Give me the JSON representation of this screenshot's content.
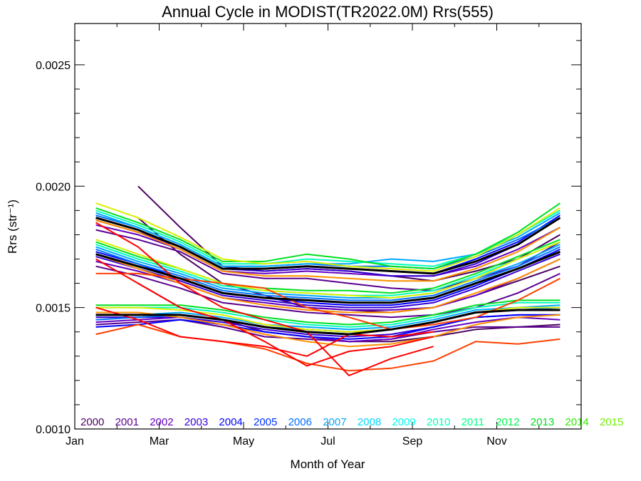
{
  "chart_data": {
    "type": "line",
    "title": "Annual Cycle in MODIST(TR2022.0M) Rrs(555)",
    "xlabel": "Month of Year",
    "ylabel": "Rrs (str⁻¹)",
    "x_ticks": [
      "Jan",
      "Mar",
      "May",
      "Jul",
      "Sep",
      "Nov"
    ],
    "x_tick_positions": [
      1,
      3,
      5,
      7,
      9,
      11
    ],
    "xlim": [
      1,
      13
    ],
    "y_ticks": [
      "0.0010",
      "0.0015",
      "0.0020",
      "0.0025"
    ],
    "y_tick_values": [
      0.001,
      0.0015,
      0.002,
      0.0025
    ],
    "ylim": [
      0.001,
      0.00267
    ],
    "months": [
      1.5,
      2.5,
      3.5,
      4.5,
      5.5,
      6.5,
      7.5,
      8.5,
      9.5,
      10.5,
      11.5,
      12.5
    ],
    "legend_years": [
      "2000",
      "2001",
      "2002",
      "2003",
      "2004",
      "2005",
      "2006",
      "2007",
      "2008",
      "2009",
      "2010",
      "2011",
      "2012",
      "2013",
      "2014",
      "2015"
    ],
    "colors": {
      "2000": "#4b0060",
      "2001": "#5a0090",
      "2002": "#6400c0",
      "2003": "#3200d8",
      "2004": "#0000ff",
      "2005": "#0030ff",
      "2006": "#0070ff",
      "2007": "#00a8ff",
      "2008": "#00d8ff",
      "2009": "#00ffee",
      "2010": "#00ffbb",
      "2011": "#00ff88",
      "2012": "#00f050",
      "2013": "#00e020",
      "2014": "#30e800",
      "2015": "#70f000",
      "late_yellow": "#d8f000",
      "late_orange": "#ff9000",
      "late_redorange": "#ff4000",
      "late_red": "#ff0000",
      "climatology": "#000000"
    },
    "climatology": [
      {
        "name": "upper",
        "values": [
          0.00187,
          0.00182,
          0.00175,
          0.00166,
          0.00166,
          0.00167,
          0.00166,
          0.00165,
          0.00164,
          0.00169,
          0.00176,
          0.00187
        ]
      },
      {
        "name": "middle",
        "values": [
          0.00172,
          0.00167,
          0.00162,
          0.00156,
          0.00154,
          0.00153,
          0.00152,
          0.00152,
          0.00154,
          0.0016,
          0.00166,
          0.00173
        ]
      },
      {
        "name": "lower",
        "values": [
          0.00147,
          0.00147,
          0.00147,
          0.00145,
          0.00142,
          0.0014,
          0.00139,
          0.00141,
          0.00144,
          0.00148,
          0.00149,
          0.00149
        ]
      }
    ],
    "series": [
      {
        "color": "#4b0060",
        "values": [
          null,
          0.002,
          0.00183,
          0.00167,
          0.00165,
          0.00166,
          0.00165,
          0.00163,
          0.00161,
          0.00165,
          0.0017,
          0.0018
        ]
      },
      {
        "color": "#4b0060",
        "values": [
          null,
          0.00187,
          0.00172,
          0.0016,
          0.00155,
          0.0015,
          0.00149,
          0.00148,
          0.0015,
          0.00155,
          0.00161,
          0.00167
        ]
      },
      {
        "color": "#4b0060",
        "values": [
          null,
          0.0016,
          0.0015,
          0.00145,
          0.0014,
          0.00138,
          0.00136,
          0.00136,
          0.00138,
          0.00141,
          0.00142,
          0.00143
        ]
      },
      {
        "color": "#5a0090",
        "values": [
          0.00182,
          0.00178,
          0.00173,
          0.00164,
          0.00162,
          0.00162,
          0.0016,
          0.00158,
          0.00157,
          0.00162,
          0.00167,
          0.00177
        ]
      },
      {
        "color": "#5a0090",
        "values": [
          0.00167,
          0.00163,
          0.00158,
          0.00152,
          0.0015,
          0.00148,
          0.00147,
          0.00146,
          0.00147,
          0.0015,
          0.00156,
          0.00164
        ]
      },
      {
        "color": "#5a0090",
        "values": [
          0.00143,
          0.00144,
          0.00145,
          0.00142,
          0.00138,
          0.00137,
          0.00136,
          0.00137,
          0.0014,
          0.00142,
          0.00142,
          0.00142
        ]
      },
      {
        "color": "#6400c0",
        "values": [
          0.00184,
          0.0018,
          0.00174,
          0.00165,
          0.00164,
          0.00165,
          0.00164,
          0.00163,
          0.00163,
          0.00167,
          0.00174,
          0.00183
        ]
      },
      {
        "color": "#6400c0",
        "values": [
          0.00169,
          0.00165,
          0.0016,
          0.00154,
          0.00152,
          0.0015,
          0.00149,
          0.00149,
          0.0015,
          0.00155,
          0.00162,
          0.0017
        ]
      },
      {
        "color": "#6400c0",
        "values": [
          0.00144,
          0.00145,
          0.00146,
          0.00143,
          0.0014,
          0.00138,
          0.00136,
          0.00137,
          0.00141,
          0.00144,
          0.00146,
          0.00145
        ]
      },
      {
        "color": "#3200d8",
        "values": [
          0.00186,
          0.00181,
          0.00175,
          0.00166,
          0.00165,
          0.00166,
          0.00165,
          0.00163,
          0.00163,
          0.00168,
          0.00176,
          0.00187
        ]
      },
      {
        "color": "#3200d8",
        "values": [
          0.00171,
          0.00166,
          0.00161,
          0.00155,
          0.00153,
          0.00151,
          0.0015,
          0.0015,
          0.00152,
          0.00158,
          0.00165,
          0.00172
        ]
      },
      {
        "color": "#3200d8",
        "values": [
          0.00146,
          0.00146,
          0.00146,
          0.00144,
          0.00141,
          0.00139,
          0.00138,
          0.00139,
          0.00142,
          0.00146,
          0.00147,
          0.00147
        ]
      },
      {
        "color": "#0000ff",
        "values": [
          0.00187,
          0.00182,
          0.00175,
          0.00166,
          0.00166,
          0.00167,
          0.00166,
          0.00165,
          0.00164,
          0.0017,
          0.00177,
          0.00188
        ]
      },
      {
        "color": "#0000ff",
        "values": [
          0.00173,
          0.00168,
          0.00162,
          0.00156,
          0.00154,
          0.00152,
          0.00151,
          0.00151,
          0.00153,
          0.00159,
          0.00166,
          0.00174
        ]
      },
      {
        "color": "#0000ff",
        "values": [
          0.00142,
          0.00143,
          0.00145,
          0.00143,
          0.0014,
          0.00138,
          0.00137,
          0.00138,
          0.00142,
          0.00146,
          0.00147,
          0.00147
        ]
      },
      {
        "color": "#0070ff",
        "values": [
          0.00188,
          0.00183,
          0.00176,
          0.00167,
          0.00167,
          0.00168,
          0.00167,
          0.00167,
          0.00166,
          0.00171,
          0.00178,
          0.00187
        ]
      },
      {
        "color": "#0070ff",
        "values": [
          0.00174,
          0.00168,
          0.00163,
          0.00157,
          0.00155,
          0.00154,
          0.00153,
          0.00153,
          0.00155,
          0.00161,
          0.00167,
          0.00175
        ]
      },
      {
        "color": "#0070ff",
        "values": [
          0.00145,
          0.00146,
          0.00147,
          0.00145,
          0.00142,
          0.00141,
          0.0014,
          0.00141,
          0.00144,
          0.00148,
          0.00149,
          0.0015
        ]
      },
      {
        "color": "#00a8ff",
        "values": [
          0.00189,
          0.00183,
          0.00176,
          0.00167,
          0.00167,
          0.00168,
          0.00168,
          0.0017,
          0.00169,
          0.00172,
          0.00179,
          0.00189
        ]
      },
      {
        "color": "#00a8ff",
        "values": [
          0.00175,
          0.00169,
          0.00164,
          0.00158,
          0.00156,
          0.00155,
          0.00154,
          0.00154,
          0.00156,
          0.00162,
          0.00168,
          0.00176
        ]
      },
      {
        "color": "#00a8ff",
        "values": [
          0.00147,
          0.00147,
          0.00148,
          0.00146,
          0.00143,
          0.00142,
          0.00141,
          0.00142,
          0.00145,
          0.00149,
          0.0015,
          0.00151
        ]
      },
      {
        "color": "#00ffbb",
        "values": [
          0.0019,
          0.00184,
          0.00177,
          0.00168,
          0.00168,
          0.0017,
          0.00169,
          0.00168,
          0.00167,
          0.00172,
          0.0018,
          0.0019
        ]
      },
      {
        "color": "#00ffbb",
        "values": [
          0.00176,
          0.0017,
          0.00165,
          0.00159,
          0.00157,
          0.00156,
          0.00155,
          0.00155,
          0.00157,
          0.00163,
          0.0017,
          0.00177
        ]
      },
      {
        "color": "#00ffbb",
        "values": [
          0.0015,
          0.0015,
          0.0015,
          0.00148,
          0.00145,
          0.00143,
          0.00142,
          0.00143,
          0.00146,
          0.0015,
          0.00152,
          0.00152
        ]
      },
      {
        "color": "#00e020",
        "values": [
          0.00191,
          0.00185,
          0.00178,
          0.00169,
          0.00169,
          0.00172,
          0.0017,
          0.00167,
          0.00166,
          0.00172,
          0.00181,
          0.00193
        ]
      },
      {
        "color": "#00e020",
        "values": [
          0.00177,
          0.00171,
          0.00166,
          0.0016,
          0.00158,
          0.00157,
          0.00157,
          0.00156,
          0.00158,
          0.00164,
          0.00171,
          0.00178
        ]
      },
      {
        "color": "#00e020",
        "values": [
          0.00151,
          0.00151,
          0.00151,
          0.00149,
          0.00146,
          0.00144,
          0.00143,
          0.00144,
          0.00147,
          0.00151,
          0.00153,
          0.00153
        ]
      },
      {
        "color": "#d8f000",
        "values": [
          0.00193,
          0.00187,
          0.00179,
          0.0017,
          0.00168,
          0.00169,
          0.00167,
          0.00166,
          0.00165,
          0.00171,
          0.0018,
          0.00191
        ]
      },
      {
        "color": "#d8f000",
        "values": [
          0.00178,
          0.00172,
          0.00166,
          0.0016,
          0.00157,
          0.00156,
          0.00155,
          0.00154,
          0.00156,
          0.00162,
          0.0017,
          0.00177
        ]
      },
      {
        "color": "#d8f000",
        "values": [
          0.0015,
          0.0015,
          0.00149,
          0.00147,
          0.00143,
          0.00141,
          0.0014,
          0.00141,
          0.00144,
          0.00148,
          0.0015,
          0.0015
        ]
      },
      {
        "color": "#ff9000",
        "values": [
          0.00186,
          0.00181,
          0.00174,
          0.00165,
          0.00163,
          0.00163,
          0.00162,
          0.00161,
          0.00161,
          0.00166,
          0.00173,
          0.00183
        ]
      },
      {
        "color": "#ff9000",
        "values": [
          0.00172,
          0.00166,
          0.0016,
          0.00154,
          0.00151,
          0.00149,
          0.00148,
          0.00148,
          0.0015,
          0.00156,
          0.00162,
          0.0017
        ]
      },
      {
        "color": "#ff9000",
        "values": [
          0.00148,
          0.00148,
          0.00146,
          0.00143,
          0.00139,
          0.00136,
          0.00134,
          0.00135,
          0.00138,
          0.00143,
          0.00146,
          0.00147
        ]
      },
      {
        "color": "#ff4000",
        "values": [
          0.00164,
          0.00164,
          0.00162,
          0.0016,
          0.00158,
          0.0015,
          0.00146,
          0.00141,
          0.00143,
          0.00146,
          0.00153,
          0.00162
        ]
      },
      {
        "color": "#ff4000",
        "values": [
          0.00139,
          0.00143,
          0.00138,
          0.00136,
          0.00133,
          0.00127,
          0.00124,
          0.00125,
          0.00128,
          0.00136,
          0.00135,
          0.00137
        ]
      },
      {
        "color": "#ff0000",
        "values": [
          0.00185,
          0.00175,
          0.0016,
          0.0015,
          0.00145,
          0.0014,
          0.00122,
          0.00129,
          0.00134,
          null,
          null,
          null
        ]
      },
      {
        "color": "#ff0000",
        "values": [
          0.0017,
          0.0016,
          0.0015,
          0.00145,
          0.00136,
          0.00126,
          0.00132,
          0.00134,
          0.00138,
          null,
          null,
          null
        ]
      },
      {
        "color": "#ff0000",
        "values": [
          0.0015,
          0.00145,
          0.00138,
          0.00136,
          0.00134,
          0.0013,
          0.00139,
          0.00138,
          0.0014,
          null,
          null,
          null
        ]
      }
    ]
  }
}
